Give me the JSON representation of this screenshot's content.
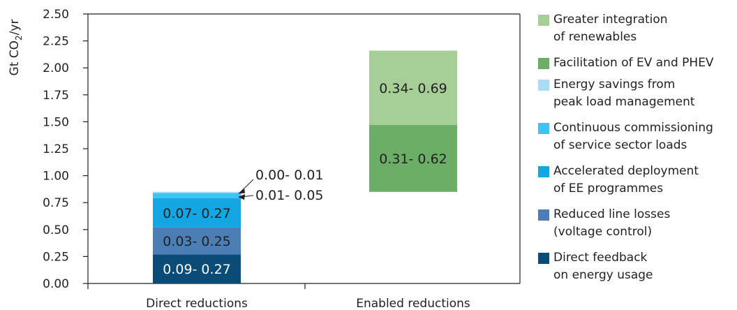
{
  "chart_data": {
    "type": "bar",
    "stacked": true,
    "floating": true,
    "categories": [
      "Direct reductions",
      "Enabled reductions"
    ],
    "ylabel_main": "Gt CO",
    "ylabel_sub": "2",
    "ylabel_tail": "/yr",
    "ylim": [
      0,
      2.5
    ],
    "yticks": [
      "0.00",
      "0.25",
      "0.50",
      "0.75",
      "1.00",
      "1.25",
      "1.50",
      "1.75",
      "2.00",
      "2.25",
      "2.50"
    ],
    "grid": false,
    "legend_position": "right",
    "series": [
      {
        "name": "Direct feedback\non energy usage",
        "category": "Direct reductions",
        "start": 0.0,
        "end": 0.27,
        "label": "0.09- 0.27",
        "color": "#0a4b78",
        "label_color": "#ffffff"
      },
      {
        "name": "Reduced line losses\n(voltage control)",
        "category": "Direct reductions",
        "start": 0.27,
        "end": 0.52,
        "label": "0.03- 0.25",
        "color": "#4a7eb5",
        "label_color": "#231f20"
      },
      {
        "name": "Accelerated deployment\nof EE programmes",
        "category": "Direct reductions",
        "start": 0.52,
        "end": 0.79,
        "label": "0.07- 0.27",
        "color": "#13a6e3",
        "label_color": "#231f20"
      },
      {
        "name": "Continuous commissioning\nof service sector loads",
        "category": "Direct reductions",
        "start": 0.79,
        "end": 0.84,
        "label": "0.01- 0.05",
        "color": "#3fc3f0",
        "label_color": "#231f20"
      },
      {
        "name": "Energy savings from\npeak load management",
        "category": "Direct reductions",
        "start": 0.84,
        "end": 0.85,
        "label": "0.00- 0.01",
        "color": "#a9dcf5",
        "label_color": "#231f20"
      },
      {
        "name": "Facilitation of EV and PHEV",
        "category": "Enabled reductions",
        "start": 0.85,
        "end": 1.47,
        "label": "0.31- 0.62",
        "color": "#6bae65",
        "label_color": "#231f20"
      },
      {
        "name": "Greater integration\nof renewables",
        "category": "Enabled reductions",
        "start": 1.47,
        "end": 2.16,
        "label": "0.34- 0.69",
        "color": "#a6cf97",
        "label_color": "#231f20"
      }
    ],
    "legend_order": [
      6,
      5,
      4,
      3,
      2,
      1,
      0
    ]
  }
}
